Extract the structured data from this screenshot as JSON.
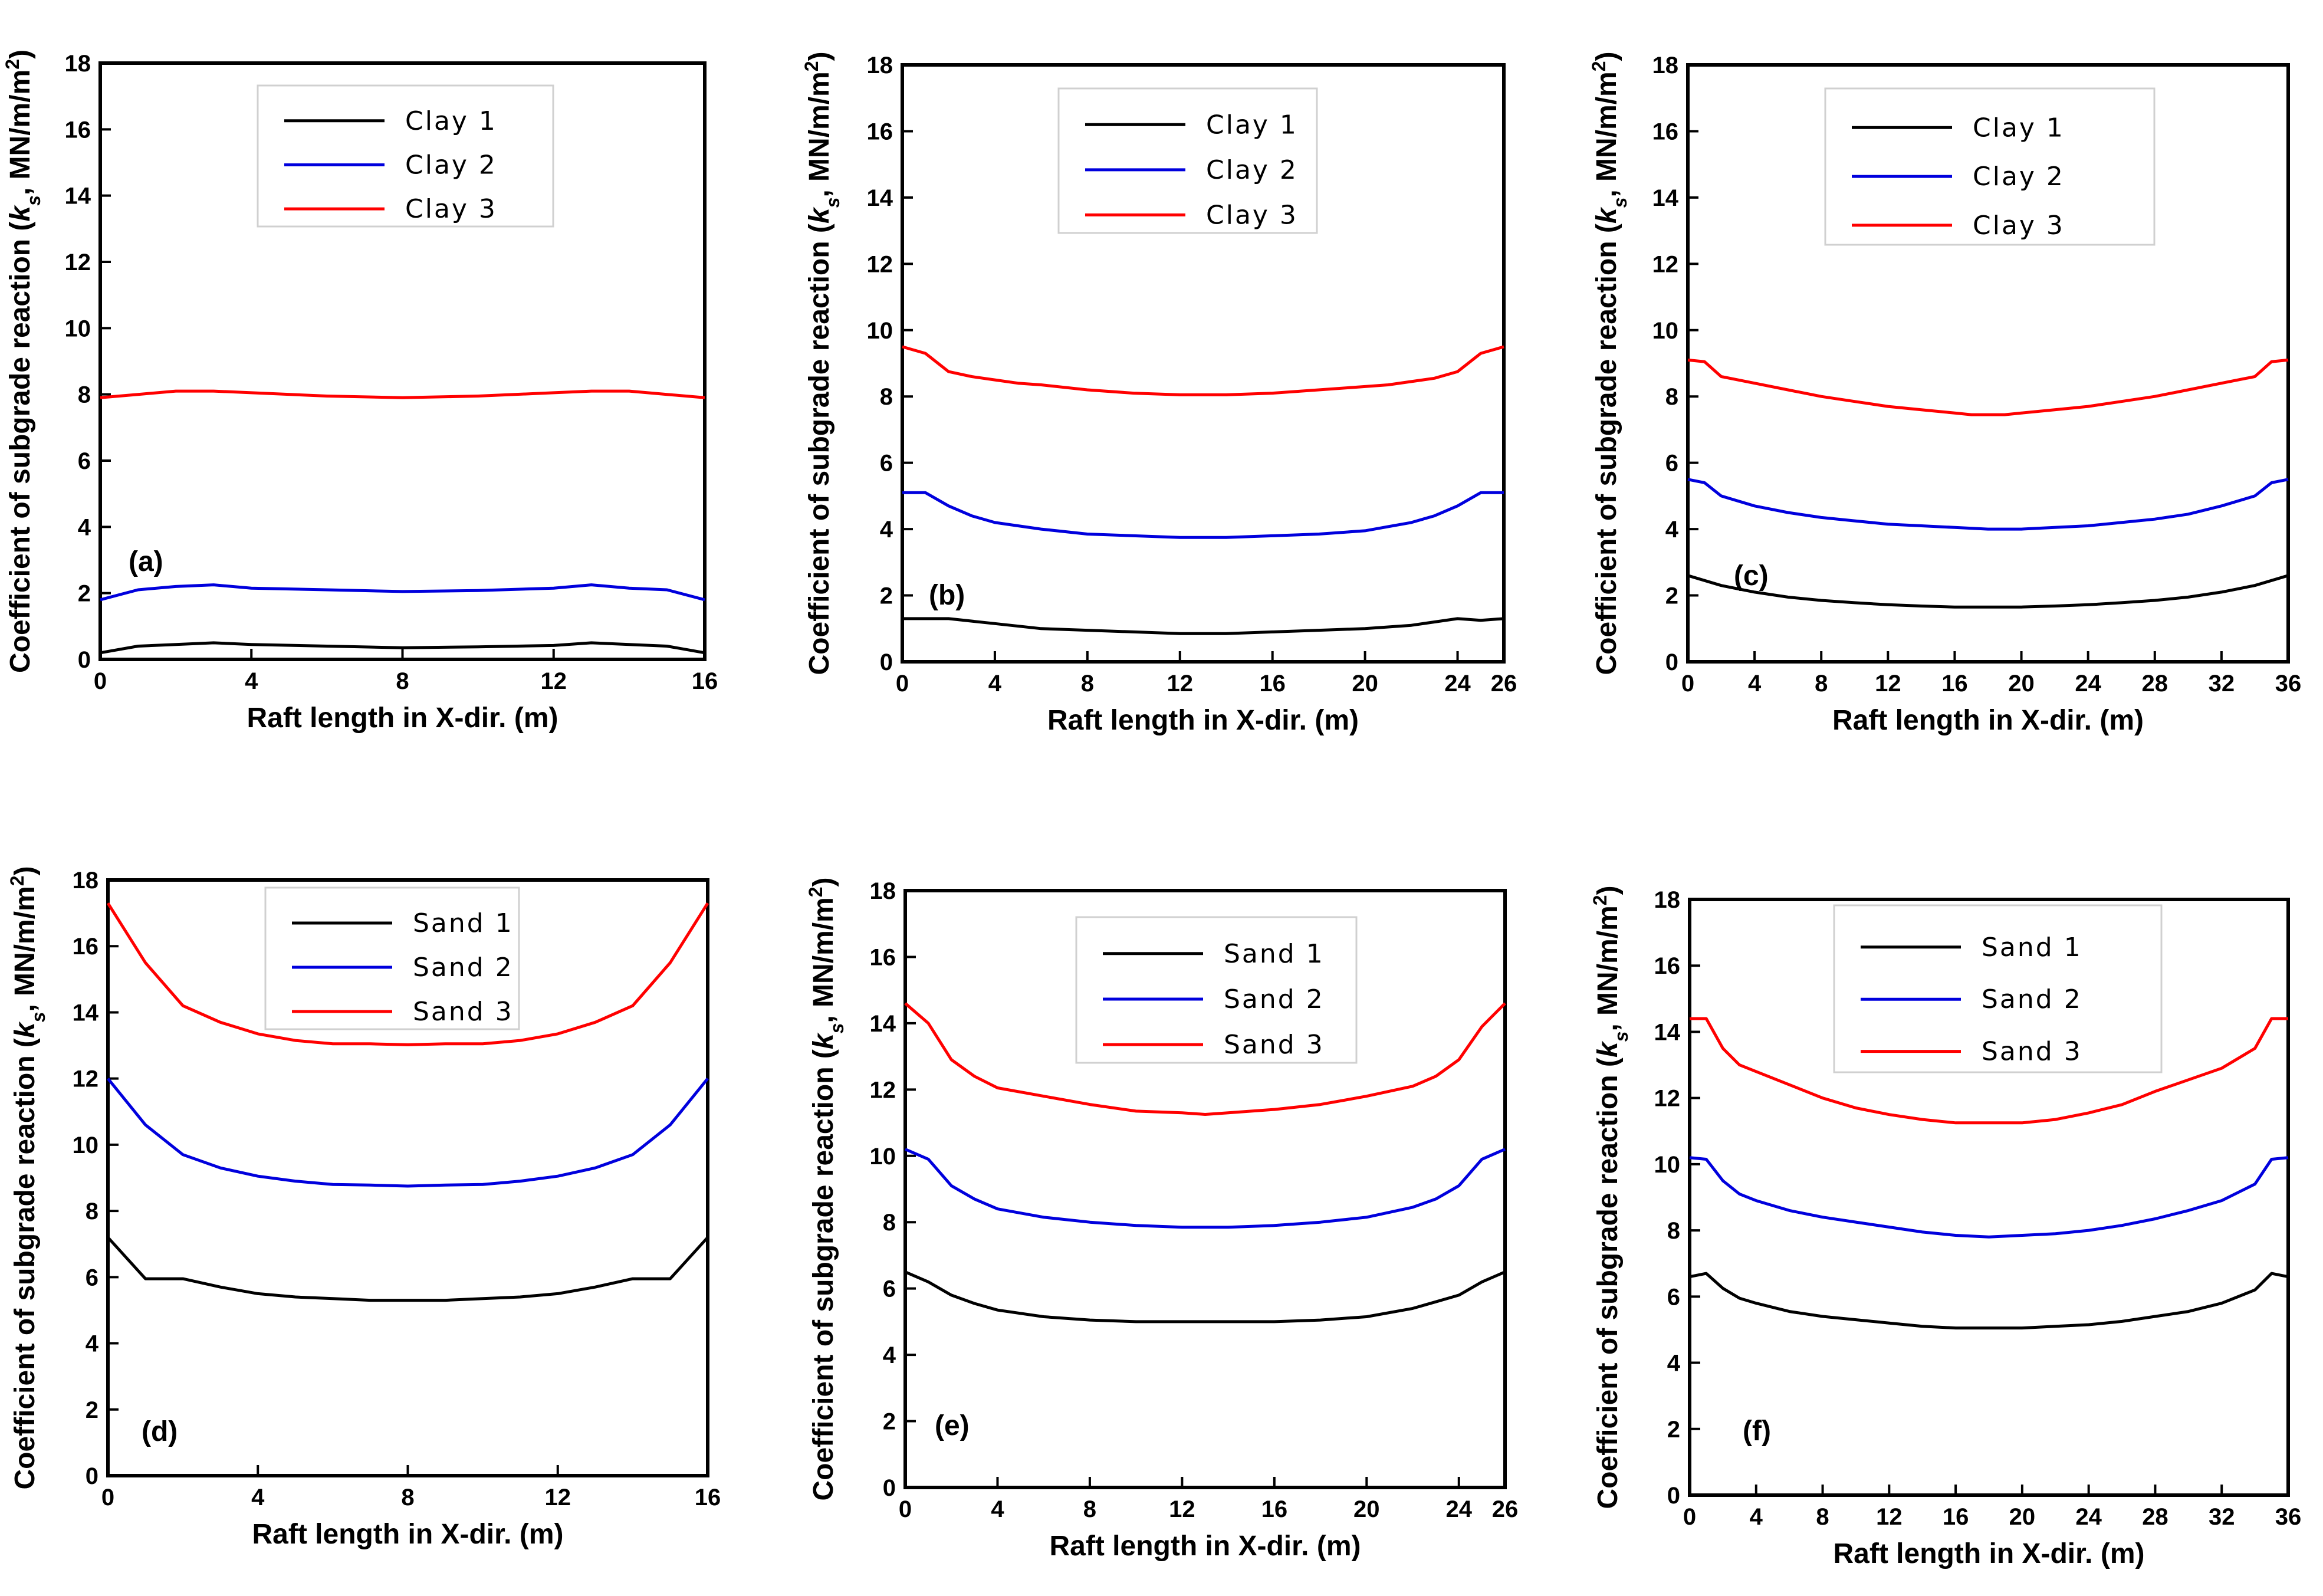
{
  "ylabel_text": "Coefficient of subgrade reaction (",
  "ylabel_symbol": "k",
  "ylabel_subscript": "s",
  "ylabel_unit": ", MN/m/m",
  "ylabel_superscript": "2",
  "ylabel_close": ")",
  "colors": {
    "series_1": "#000000",
    "series_2": "#0000dd",
    "series_3": "#ff0000",
    "frame": "#000000"
  },
  "chart_data": [
    {
      "type": "line",
      "panel": "(a)",
      "xlabel": "Raft length in X-dir. (m)",
      "xlim": [
        0,
        16
      ],
      "xticks": [
        0,
        4,
        8,
        12,
        16
      ],
      "ylim": [
        0,
        18
      ],
      "yticks": [
        0,
        2,
        4,
        6,
        8,
        10,
        12,
        14,
        16,
        18
      ],
      "legend_position": "top-center",
      "series": [
        {
          "name": "Clay 1",
          "x": [
            0,
            1,
            2,
            3,
            4,
            6,
            8,
            10,
            12,
            13,
            14,
            15,
            16
          ],
          "y": [
            0.2,
            0.4,
            0.45,
            0.5,
            0.45,
            0.4,
            0.35,
            0.38,
            0.42,
            0.5,
            0.45,
            0.4,
            0.2
          ]
        },
        {
          "name": "Clay 2",
          "x": [
            0,
            1,
            2,
            3,
            4,
            6,
            8,
            10,
            12,
            13,
            14,
            15,
            16
          ],
          "y": [
            1.8,
            2.1,
            2.2,
            2.25,
            2.15,
            2.1,
            2.05,
            2.08,
            2.15,
            2.25,
            2.15,
            2.1,
            1.8
          ]
        },
        {
          "name": "Clay 3",
          "x": [
            0,
            1,
            2,
            3,
            4,
            6,
            8,
            10,
            12,
            13,
            14,
            15,
            16
          ],
          "y": [
            7.9,
            8.0,
            8.1,
            8.1,
            8.05,
            7.95,
            7.9,
            7.95,
            8.05,
            8.1,
            8.1,
            8.0,
            7.9
          ]
        }
      ]
    },
    {
      "type": "line",
      "panel": "(b)",
      "xlabel": "Raft length in X-dir. (m)",
      "xlim": [
        0,
        26
      ],
      "xticks": [
        0,
        4,
        8,
        12,
        16,
        20,
        24,
        26
      ],
      "ylim": [
        0,
        18
      ],
      "yticks": [
        0,
        2,
        4,
        6,
        8,
        10,
        12,
        14,
        16,
        18
      ],
      "legend_position": "top-center",
      "series": [
        {
          "name": "Clay 1",
          "x": [
            0,
            1,
            2,
            4,
            6,
            8,
            10,
            12,
            14,
            16,
            18,
            20,
            22,
            24,
            25,
            26
          ],
          "y": [
            1.3,
            1.3,
            1.3,
            1.15,
            1.0,
            0.95,
            0.9,
            0.85,
            0.85,
            0.9,
            0.95,
            1.0,
            1.1,
            1.3,
            1.25,
            1.3
          ]
        },
        {
          "name": "Clay 2",
          "x": [
            0,
            1,
            2,
            3,
            4,
            6,
            8,
            10,
            12,
            14,
            16,
            18,
            20,
            22,
            23,
            24,
            25,
            26
          ],
          "y": [
            5.1,
            5.1,
            4.7,
            4.4,
            4.2,
            4.0,
            3.85,
            3.8,
            3.75,
            3.75,
            3.8,
            3.85,
            3.95,
            4.2,
            4.4,
            4.7,
            5.1,
            5.1
          ]
        },
        {
          "name": "Clay 3",
          "x": [
            0,
            1,
            2,
            3,
            4,
            5,
            6,
            8,
            10,
            12,
            14,
            16,
            18,
            20,
            21,
            22,
            23,
            24,
            25,
            26
          ],
          "y": [
            9.5,
            9.3,
            8.75,
            8.6,
            8.5,
            8.4,
            8.35,
            8.2,
            8.1,
            8.05,
            8.05,
            8.1,
            8.2,
            8.3,
            8.35,
            8.45,
            8.55,
            8.75,
            9.3,
            9.5
          ]
        }
      ]
    },
    {
      "type": "line",
      "panel": "(c)",
      "xlabel": "Raft length in X-dir. (m)",
      "xlim": [
        0,
        36
      ],
      "xticks": [
        0,
        4,
        8,
        12,
        16,
        20,
        24,
        28,
        32,
        36
      ],
      "ylim": [
        0,
        18
      ],
      "yticks": [
        0,
        2,
        4,
        6,
        8,
        10,
        12,
        14,
        16,
        18
      ],
      "legend_position": "top-center",
      "series": [
        {
          "name": "Clay 1",
          "x": [
            0,
            2,
            4,
            6,
            8,
            10,
            12,
            14,
            16,
            18,
            20,
            22,
            24,
            26,
            28,
            30,
            32,
            34,
            36
          ],
          "y": [
            2.6,
            2.3,
            2.1,
            1.95,
            1.85,
            1.78,
            1.72,
            1.68,
            1.65,
            1.65,
            1.65,
            1.68,
            1.72,
            1.78,
            1.85,
            1.95,
            2.1,
            2.3,
            2.6
          ]
        },
        {
          "name": "Clay 2",
          "x": [
            0,
            1,
            2,
            4,
            6,
            8,
            10,
            12,
            14,
            16,
            18,
            20,
            22,
            24,
            26,
            28,
            30,
            32,
            34,
            35,
            36
          ],
          "y": [
            5.5,
            5.4,
            5.0,
            4.7,
            4.5,
            4.35,
            4.25,
            4.15,
            4.1,
            4.05,
            4.0,
            4.0,
            4.05,
            4.1,
            4.2,
            4.3,
            4.45,
            4.7,
            5.0,
            5.4,
            5.5
          ]
        },
        {
          "name": "Clay 3",
          "x": [
            0,
            1,
            2,
            4,
            6,
            8,
            10,
            12,
            14,
            16,
            17,
            18,
            19,
            20,
            22,
            24,
            26,
            28,
            30,
            32,
            34,
            35,
            36
          ],
          "y": [
            9.1,
            9.05,
            8.6,
            8.4,
            8.2,
            8.0,
            7.85,
            7.7,
            7.6,
            7.5,
            7.45,
            7.45,
            7.45,
            7.5,
            7.6,
            7.7,
            7.85,
            8.0,
            8.2,
            8.4,
            8.6,
            9.05,
            9.1
          ]
        }
      ]
    },
    {
      "type": "line",
      "panel": "(d)",
      "xlabel": "Raft length in X-dir. (m)",
      "xlim": [
        0,
        16
      ],
      "xticks": [
        0,
        4,
        8,
        12,
        16
      ],
      "ylim": [
        0,
        18
      ],
      "yticks": [
        0,
        2,
        4,
        6,
        8,
        10,
        12,
        14,
        16,
        18
      ],
      "legend_position": "top-center",
      "series": [
        {
          "name": "Sand 1",
          "x": [
            0,
            1,
            2,
            3,
            4,
            5,
            6,
            7,
            8,
            9,
            10,
            11,
            12,
            13,
            14,
            15,
            16
          ],
          "y": [
            7.2,
            5.95,
            5.95,
            5.7,
            5.5,
            5.4,
            5.35,
            5.3,
            5.3,
            5.3,
            5.35,
            5.4,
            5.5,
            5.7,
            5.95,
            5.95,
            7.2
          ]
        },
        {
          "name": "Sand 2",
          "x": [
            0,
            1,
            2,
            3,
            4,
            5,
            6,
            7,
            8,
            9,
            10,
            11,
            12,
            13,
            14,
            15,
            16
          ],
          "y": [
            12.0,
            10.6,
            9.7,
            9.3,
            9.05,
            8.9,
            8.8,
            8.78,
            8.75,
            8.78,
            8.8,
            8.9,
            9.05,
            9.3,
            9.7,
            10.6,
            12.0
          ]
        },
        {
          "name": "Sand 3",
          "x": [
            0,
            1,
            2,
            3,
            4,
            5,
            6,
            7,
            8,
            9,
            10,
            11,
            12,
            13,
            14,
            15,
            16
          ],
          "y": [
            17.3,
            15.5,
            14.2,
            13.7,
            13.35,
            13.15,
            13.05,
            13.05,
            13.02,
            13.05,
            13.05,
            13.15,
            13.35,
            13.7,
            14.2,
            15.5,
            17.3
          ]
        }
      ]
    },
    {
      "type": "line",
      "panel": "(e)",
      "xlabel": "Raft length in X-dir. (m)",
      "xlim": [
        0,
        26
      ],
      "xticks": [
        0,
        4,
        8,
        12,
        16,
        20,
        24,
        26
      ],
      "ylim": [
        0,
        18
      ],
      "yticks": [
        0,
        2,
        4,
        6,
        8,
        10,
        12,
        14,
        16,
        18
      ],
      "legend_position": "top-center",
      "series": [
        {
          "name": "Sand 1",
          "x": [
            0,
            1,
            2,
            3,
            4,
            6,
            8,
            10,
            12,
            14,
            16,
            18,
            20,
            22,
            23,
            24,
            25,
            26
          ],
          "y": [
            6.5,
            6.2,
            5.8,
            5.55,
            5.35,
            5.15,
            5.05,
            5.0,
            5.0,
            5.0,
            5.0,
            5.05,
            5.15,
            5.4,
            5.6,
            5.8,
            6.2,
            6.5
          ]
        },
        {
          "name": "Sand 2",
          "x": [
            0,
            1,
            2,
            3,
            4,
            6,
            8,
            10,
            12,
            14,
            16,
            18,
            20,
            22,
            23,
            24,
            25,
            26
          ],
          "y": [
            10.2,
            9.9,
            9.1,
            8.7,
            8.4,
            8.15,
            8.0,
            7.9,
            7.85,
            7.85,
            7.9,
            8.0,
            8.15,
            8.45,
            8.7,
            9.1,
            9.9,
            10.2
          ]
        },
        {
          "name": "Sand 3",
          "x": [
            0,
            1,
            2,
            3,
            4,
            6,
            8,
            10,
            12,
            13,
            14,
            16,
            18,
            20,
            22,
            23,
            24,
            25,
            26
          ],
          "y": [
            14.6,
            14.0,
            12.9,
            12.4,
            12.05,
            11.8,
            11.55,
            11.35,
            11.3,
            11.25,
            11.3,
            11.4,
            11.55,
            11.8,
            12.1,
            12.4,
            12.9,
            13.9,
            14.6
          ]
        }
      ]
    },
    {
      "type": "line",
      "panel": "(f)",
      "xlabel": "Raft length in X-dir. (m)",
      "xlim": [
        0,
        36
      ],
      "xticks": [
        0,
        4,
        8,
        12,
        16,
        20,
        24,
        28,
        32,
        36
      ],
      "ylim": [
        0,
        18
      ],
      "yticks": [
        0,
        2,
        4,
        6,
        8,
        10,
        12,
        14,
        16,
        18
      ],
      "legend_position": "top-center",
      "series": [
        {
          "name": "Sand 1",
          "x": [
            0,
            1,
            2,
            3,
            4,
            6,
            8,
            10,
            12,
            14,
            16,
            18,
            20,
            22,
            24,
            26,
            28,
            30,
            32,
            34,
            35,
            36
          ],
          "y": [
            6.6,
            6.7,
            6.25,
            5.95,
            5.8,
            5.55,
            5.4,
            5.3,
            5.2,
            5.1,
            5.05,
            5.05,
            5.05,
            5.1,
            5.15,
            5.25,
            5.4,
            5.55,
            5.8,
            6.2,
            6.7,
            6.6
          ]
        },
        {
          "name": "Sand 2",
          "x": [
            0,
            1,
            2,
            3,
            4,
            6,
            8,
            10,
            12,
            14,
            16,
            18,
            20,
            22,
            24,
            26,
            28,
            30,
            32,
            34,
            35,
            36
          ],
          "y": [
            10.2,
            10.15,
            9.5,
            9.1,
            8.9,
            8.6,
            8.4,
            8.25,
            8.1,
            7.95,
            7.85,
            7.8,
            7.85,
            7.9,
            8.0,
            8.15,
            8.35,
            8.6,
            8.9,
            9.4,
            10.15,
            10.2
          ]
        },
        {
          "name": "Sand 3",
          "x": [
            0,
            1,
            2,
            3,
            4,
            6,
            8,
            10,
            12,
            14,
            16,
            18,
            20,
            22,
            24,
            26,
            28,
            30,
            32,
            34,
            35,
            36
          ],
          "y": [
            14.4,
            14.4,
            13.5,
            13.0,
            12.8,
            12.4,
            12.0,
            11.7,
            11.5,
            11.35,
            11.25,
            11.25,
            11.25,
            11.35,
            11.55,
            11.8,
            12.2,
            12.55,
            12.9,
            13.5,
            14.4,
            14.4
          ]
        }
      ]
    }
  ]
}
